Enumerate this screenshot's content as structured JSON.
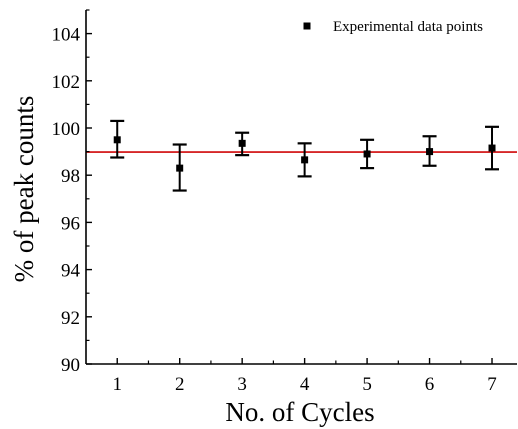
{
  "chart_data": {
    "type": "scatter",
    "title": "",
    "xlabel": "No. of Cycles",
    "ylabel": "% of peak counts",
    "xlim": [
      0.5,
      7.4
    ],
    "ylim": [
      90,
      105
    ],
    "x_ticks": [
      1,
      2,
      3,
      4,
      5,
      6,
      7
    ],
    "y_ticks": [
      90,
      92,
      94,
      96,
      98,
      100,
      102,
      104
    ],
    "grid": false,
    "legend": {
      "position": "top-right",
      "entries": [
        "Experimental data points"
      ]
    },
    "series": [
      {
        "name": "Experimental data points",
        "marker": "square",
        "color": "#000000",
        "x": [
          1,
          2,
          3,
          4,
          5,
          6,
          7
        ],
        "y": [
          99.5,
          98.3,
          99.35,
          98.65,
          98.9,
          99.0,
          99.15
        ],
        "error_low": [
          98.75,
          97.35,
          98.85,
          97.95,
          98.3,
          98.4,
          98.25
        ],
        "error_high": [
          100.3,
          99.3,
          99.8,
          99.35,
          99.5,
          99.65,
          100.05
        ]
      }
    ],
    "reference_line": {
      "y": 98.98,
      "color": "#d62728"
    }
  }
}
